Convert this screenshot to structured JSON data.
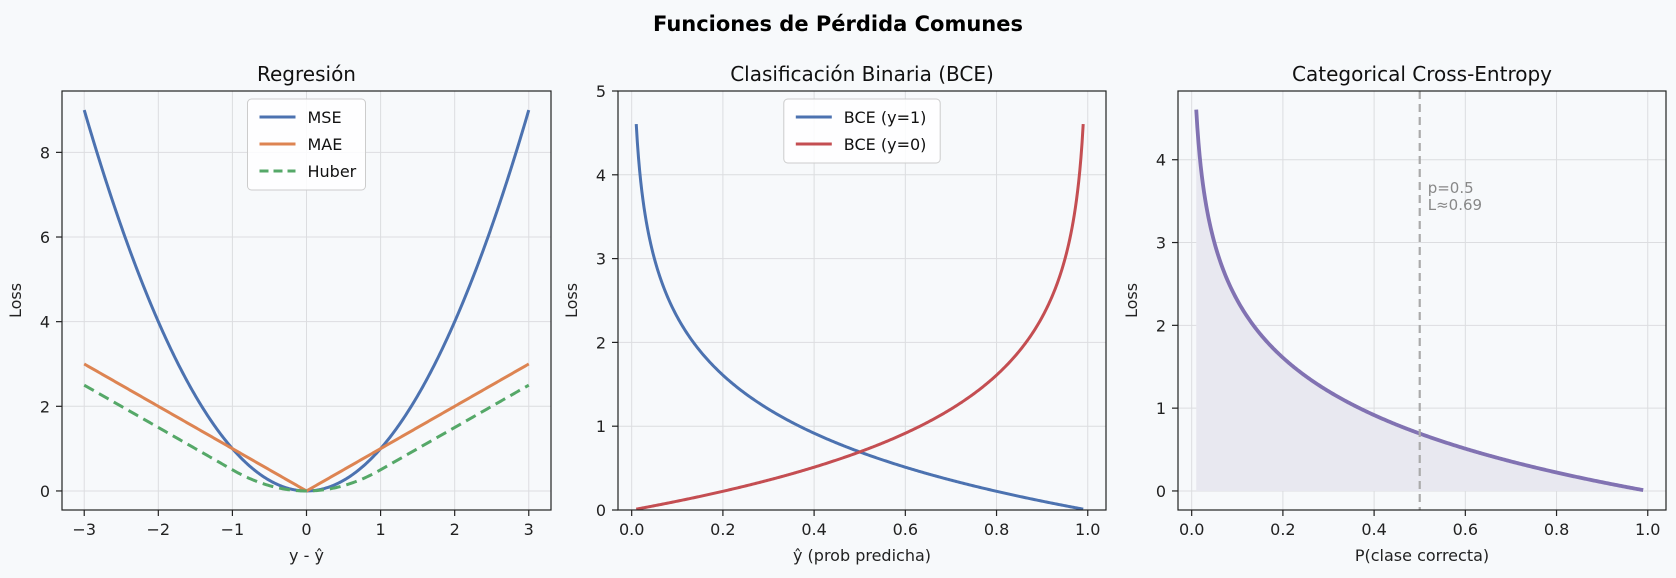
{
  "suptitle": "Funciones de Pérdida Comunes",
  "colors": {
    "mse": "#4c72b0",
    "mae": "#dd8452",
    "huber": "#55a868",
    "bce_pos": "#4c72b0",
    "bce_neg": "#c44e52",
    "cce": "#8172b2",
    "cce_fill": "#e8e8f0",
    "refline": "#aaaaaa",
    "annotation": "#888888",
    "grid": "#dcdde0",
    "background": "#f7f9fb"
  },
  "chart_data": [
    {
      "type": "line",
      "title": "Regresión",
      "xlabel": "y - ŷ",
      "ylabel": "Loss",
      "xlim": [
        -3.3,
        3.3
      ],
      "ylim": [
        -0.45,
        9.45
      ],
      "xticks": [
        -3,
        -2,
        -1,
        0,
        1,
        2,
        3
      ],
      "xtick_labels": [
        "−3",
        "−2",
        "−1",
        "0",
        "1",
        "2",
        "3"
      ],
      "yticks": [
        0,
        2,
        4,
        6,
        8
      ],
      "ytick_labels": [
        "0",
        "2",
        "4",
        "6",
        "8"
      ],
      "grid": true,
      "legend": "upper center",
      "x_range": [
        -3,
        3
      ],
      "series": [
        {
          "name": "MSE",
          "formula": "x^2",
          "color": "#4c72b0",
          "dash": false
        },
        {
          "name": "MAE",
          "formula": "|x|",
          "color": "#dd8452",
          "dash": false
        },
        {
          "name": "Huber",
          "formula": "huber(delta=1)",
          "color": "#55a868",
          "dash": true
        }
      ]
    },
    {
      "type": "line",
      "title": "Clasificación Binaria (BCE)",
      "xlabel": "ŷ (prob predicha)",
      "ylabel": "Loss",
      "xlim": [
        -0.03,
        1.04
      ],
      "ylim": [
        0,
        5
      ],
      "xticks": [
        0,
        0.2,
        0.4,
        0.6,
        0.8,
        1.0
      ],
      "xtick_labels": [
        "0.0",
        "0.2",
        "0.4",
        "0.6",
        "0.8",
        "1.0"
      ],
      "yticks": [
        0,
        1,
        2,
        3,
        4,
        5
      ],
      "ytick_labels": [
        "0",
        "1",
        "2",
        "3",
        "4",
        "5"
      ],
      "grid": true,
      "legend": "upper center",
      "x_range": [
        0.01,
        0.99
      ],
      "series": [
        {
          "name": "BCE (y=1)",
          "formula": "-ln(p)",
          "color": "#4c72b0",
          "dash": false
        },
        {
          "name": "BCE (y=0)",
          "formula": "-ln(1-p)",
          "color": "#c44e52",
          "dash": false
        }
      ]
    },
    {
      "type": "area",
      "title": "Categorical Cross-Entropy",
      "xlabel": "P(clase correcta)",
      "ylabel": "Loss",
      "xlim": [
        -0.03,
        1.04
      ],
      "ylim": [
        -0.23,
        4.83
      ],
      "xticks": [
        0,
        0.2,
        0.4,
        0.6,
        0.8,
        1.0
      ],
      "xtick_labels": [
        "0.0",
        "0.2",
        "0.4",
        "0.6",
        "0.8",
        "1.0"
      ],
      "yticks": [
        0,
        1,
        2,
        3,
        4
      ],
      "ytick_labels": [
        "0",
        "1",
        "2",
        "3",
        "4"
      ],
      "grid": true,
      "x_range": [
        0.01,
        0.99
      ],
      "series": [
        {
          "formula": "-ln(p)",
          "color": "#8172b2",
          "dash": false,
          "fill": true
        }
      ],
      "vline": {
        "x": 0.5
      },
      "annotation": {
        "lines": [
          "p=0.5",
          "L≈0.69"
        ],
        "x": 0.5,
        "y": 3.6
      }
    }
  ]
}
